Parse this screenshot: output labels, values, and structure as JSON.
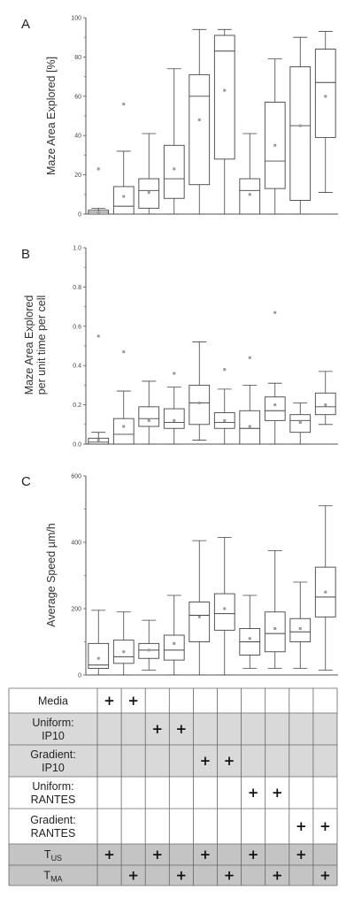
{
  "panels": [
    {
      "letter": "A",
      "ylabel_lines": [
        "Maze Area Explored [%]"
      ],
      "chart_data": {
        "type": "box",
        "ylim": [
          0,
          100
        ],
        "yticks": [
          "0",
          "20",
          "40",
          "60",
          "80",
          "100"
        ],
        "ytick_values": [
          0,
          20,
          40,
          60,
          80,
          100
        ],
        "boxes": [
          {
            "min": 0,
            "q1": 0,
            "median": 1,
            "q3": 2,
            "max": 3,
            "mean": 1,
            "outlier": 23
          },
          {
            "min": 0,
            "q1": 0,
            "median": 4,
            "q3": 14,
            "max": 32,
            "mean": 9,
            "outlier": 56
          },
          {
            "min": 0,
            "q1": 3,
            "median": 12,
            "q3": 18,
            "max": 41,
            "mean": 11,
            "outlier": null
          },
          {
            "min": 0,
            "q1": 8,
            "median": 18,
            "q3": 35,
            "max": 74,
            "mean": 23,
            "outlier": null
          },
          {
            "min": 0,
            "q1": 15,
            "median": 60,
            "q3": 71,
            "max": 94,
            "mean": 48,
            "outlier": null
          },
          {
            "min": 0,
            "q1": 28,
            "median": 83,
            "q3": 91,
            "max": 94,
            "mean": 63,
            "outlier": null
          },
          {
            "min": 0,
            "q1": 0,
            "median": 12,
            "q3": 18,
            "max": 41,
            "mean": 10,
            "outlier": null
          },
          {
            "min": 0,
            "q1": 13,
            "median": 27,
            "q3": 57,
            "max": 79,
            "mean": 35,
            "outlier": null
          },
          {
            "min": 0,
            "q1": 7,
            "median": 45,
            "q3": 75,
            "max": 90,
            "mean": 45,
            "outlier": null
          },
          {
            "min": 11,
            "q1": 39,
            "median": 67,
            "q3": 84,
            "max": 93,
            "mean": 60,
            "outlier": null
          }
        ]
      }
    },
    {
      "letter": "B",
      "ylabel_lines": [
        "Maze Area Explored",
        "per unit time per cell"
      ],
      "chart_data": {
        "type": "box",
        "ylim": [
          0,
          1.0
        ],
        "yticks": [
          "0.0",
          "0.2",
          "0.4",
          "0.6",
          "0.8",
          "1.0"
        ],
        "ytick_values": [
          0,
          0.2,
          0.4,
          0.6,
          0.8,
          1.0
        ],
        "boxes": [
          {
            "min": 0,
            "q1": 0,
            "median": 0.01,
            "q3": 0.03,
            "max": 0.06,
            "mean": 0.02,
            "outlier": 0.55
          },
          {
            "min": 0,
            "q1": 0,
            "median": 0.05,
            "q3": 0.13,
            "max": 0.27,
            "mean": 0.09,
            "outlier": 0.47
          },
          {
            "min": 0,
            "q1": 0.09,
            "median": 0.13,
            "q3": 0.19,
            "max": 0.32,
            "mean": 0.12,
            "outlier": null
          },
          {
            "min": 0,
            "q1": 0.08,
            "median": 0.11,
            "q3": 0.18,
            "max": 0.29,
            "mean": 0.12,
            "outlier": 0.36
          },
          {
            "min": 0.02,
            "q1": 0.1,
            "median": 0.21,
            "q3": 0.3,
            "max": 0.52,
            "mean": 0.21,
            "outlier": null
          },
          {
            "min": 0,
            "q1": 0.08,
            "median": 0.11,
            "q3": 0.16,
            "max": 0.28,
            "mean": 0.12,
            "outlier": 0.38
          },
          {
            "min": 0,
            "q1": 0,
            "median": 0.08,
            "q3": 0.17,
            "max": 0.3,
            "mean": 0.09,
            "outlier": 0.44
          },
          {
            "min": 0,
            "q1": 0.12,
            "median": 0.17,
            "q3": 0.24,
            "max": 0.31,
            "mean": 0.2,
            "outlier": 0.67
          },
          {
            "min": 0,
            "q1": 0.06,
            "median": 0.12,
            "q3": 0.15,
            "max": 0.21,
            "mean": 0.11,
            "outlier": null
          },
          {
            "min": 0.1,
            "q1": 0.15,
            "median": 0.19,
            "q3": 0.26,
            "max": 0.37,
            "mean": 0.2,
            "outlier": null
          }
        ]
      }
    },
    {
      "letter": "C",
      "ylabel_lines": [
        "Average Speed µm/h"
      ],
      "chart_data": {
        "type": "box",
        "ylim": [
          0,
          600
        ],
        "yticks": [
          "0",
          "200",
          "400",
          "600"
        ],
        "ytick_values": [
          0,
          200,
          400,
          600
        ],
        "boxes": [
          {
            "min": 0,
            "q1": 20,
            "median": 30,
            "q3": 95,
            "max": 195,
            "mean": 50,
            "outlier": null
          },
          {
            "min": 0,
            "q1": 35,
            "median": 55,
            "q3": 105,
            "max": 190,
            "mean": 70,
            "outlier": null
          },
          {
            "min": 15,
            "q1": 50,
            "median": 75,
            "q3": 95,
            "max": 165,
            "mean": 75,
            "outlier": null
          },
          {
            "min": 0,
            "q1": 45,
            "median": 75,
            "q3": 120,
            "max": 240,
            "mean": 95,
            "outlier": null
          },
          {
            "min": 0,
            "q1": 100,
            "median": 180,
            "q3": 220,
            "max": 405,
            "mean": 175,
            "outlier": null
          },
          {
            "min": 0,
            "q1": 135,
            "median": 185,
            "q3": 245,
            "max": 415,
            "mean": 200,
            "outlier": null
          },
          {
            "min": 20,
            "q1": 60,
            "median": 100,
            "q3": 140,
            "max": 240,
            "mean": 110,
            "outlier": null
          },
          {
            "min": 20,
            "q1": 70,
            "median": 125,
            "q3": 190,
            "max": 375,
            "mean": 140,
            "outlier": null
          },
          {
            "min": 20,
            "q1": 100,
            "median": 130,
            "q3": 170,
            "max": 280,
            "mean": 140,
            "outlier": null
          },
          {
            "min": 15,
            "q1": 175,
            "median": 235,
            "q3": 325,
            "max": 510,
            "mean": 250,
            "outlier": null
          }
        ]
      }
    }
  ],
  "table": {
    "rows": [
      {
        "label_lines": [
          "Media"
        ],
        "shaded": false,
        "plus": [
          1,
          1,
          0,
          0,
          0,
          0,
          0,
          0,
          0,
          0
        ]
      },
      {
        "label_lines": [
          "Uniform:",
          "IP10"
        ],
        "shaded": true,
        "plus": [
          0,
          0,
          1,
          1,
          0,
          0,
          0,
          0,
          0,
          0
        ]
      },
      {
        "label_lines": [
          "Gradient:",
          "IP10"
        ],
        "shaded": true,
        "plus": [
          0,
          0,
          0,
          0,
          1,
          1,
          0,
          0,
          0,
          0
        ]
      },
      {
        "label_lines": [
          "Uniform:",
          "RANTES"
        ],
        "shaded": false,
        "plus": [
          0,
          0,
          0,
          0,
          0,
          0,
          1,
          1,
          0,
          0
        ]
      },
      {
        "label_lines": [
          "Gradient:",
          "RANTES"
        ],
        "shaded": false,
        "plus": [
          0,
          0,
          0,
          0,
          0,
          0,
          0,
          0,
          1,
          1
        ]
      },
      {
        "label_main": "T",
        "label_sub": "US",
        "shaded": "dark",
        "plus": [
          1,
          0,
          1,
          0,
          1,
          0,
          1,
          0,
          1,
          0
        ]
      },
      {
        "label_main": "T",
        "label_sub": "MA",
        "shaded": "dark",
        "plus": [
          0,
          1,
          0,
          1,
          0,
          1,
          0,
          1,
          0,
          1
        ]
      }
    ],
    "plus_symbol": "+"
  },
  "colors": {
    "axis": "#555555",
    "box_stroke": "#444444",
    "mean_marker": "#999999",
    "shade_light": "#d9d9d9",
    "shade_dark": "#c4c4c4",
    "table_border": "#666666"
  }
}
